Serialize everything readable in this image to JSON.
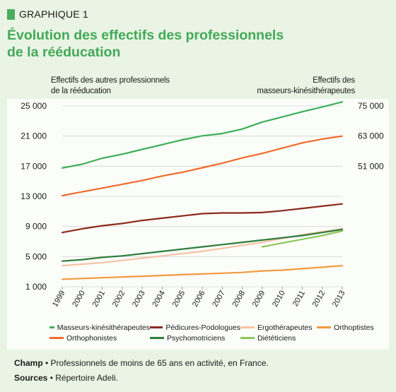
{
  "header": {
    "tag": "GRAPHIQUE 1",
    "title_line1": "Évolution des effectifs des professionnels",
    "title_line2": "de la rééducation"
  },
  "axes": {
    "left_title_line1": "Effectifs des autres professionnels",
    "left_title_line2": "de la rééducation",
    "right_title_line1": "Effectifs des",
    "right_title_line2": "masseurs-kinésithérapeutes"
  },
  "chart_data": {
    "type": "line",
    "x": [
      "1999",
      "2000",
      "2001",
      "2002",
      "2003",
      "2004",
      "2005",
      "2006",
      "2007",
      "2008",
      "2009",
      "2010",
      "2011",
      "2012",
      "2013"
    ],
    "y_left": {
      "ticks": [
        "25 000",
        "21 000",
        "17 000",
        "13 000",
        "9 000",
        "5 000",
        "1 000"
      ],
      "range": [
        1000,
        25000
      ]
    },
    "y_right": {
      "ticks": [
        "75 000",
        "63 000",
        "51 000"
      ],
      "range": [
        3000,
        75000
      ]
    },
    "grid": true,
    "legend_position": "bottom",
    "series": [
      {
        "name": "Masseurs-kinésithérapeutes",
        "axis": "right",
        "color": "#3fae5a",
        "values": [
          50300,
          51800,
          54200,
          55800,
          57700,
          59600,
          61500,
          63100,
          64000,
          65800,
          68600,
          70600,
          72700,
          74600,
          76600
        ]
      },
      {
        "name": "Pédicures-Podologues",
        "axis": "left",
        "color": "#8b2a1e",
        "values": [
          8200,
          8700,
          9100,
          9400,
          9800,
          10100,
          10400,
          10700,
          10800,
          10800,
          10850,
          11100,
          11400,
          11700,
          12000
        ]
      },
      {
        "name": "Ergothérapeutes",
        "axis": "left",
        "color": "#f6c3a5",
        "values": [
          3800,
          4000,
          4200,
          4500,
          4800,
          5100,
          5400,
          5700,
          6100,
          6500,
          6900,
          7400,
          7900,
          8300,
          8700
        ]
      },
      {
        "name": "Orthoptistes",
        "axis": "left",
        "color": "#f29a3d",
        "values": [
          2000,
          2100,
          2200,
          2300,
          2400,
          2500,
          2600,
          2700,
          2800,
          2900,
          3100,
          3200,
          3400,
          3600,
          3800
        ]
      },
      {
        "name": "Orthophonistes",
        "axis": "left",
        "color": "#ef6b2c",
        "values": [
          13100,
          13600,
          14100,
          14600,
          15100,
          15700,
          16200,
          16800,
          17400,
          18100,
          18700,
          19400,
          20100,
          20600,
          21000
        ]
      },
      {
        "name": "Psychomotriciens",
        "axis": "left",
        "color": "#2e7d3c",
        "values": [
          4400,
          4600,
          4900,
          5100,
          5400,
          5700,
          6000,
          6300,
          6600,
          6900,
          7200,
          7500,
          7800,
          8200,
          8600
        ]
      },
      {
        "name": "Diététiciens",
        "axis": "left",
        "color": "#8cc85a",
        "values": [
          null,
          null,
          null,
          null,
          null,
          null,
          null,
          null,
          null,
          null,
          6300,
          6800,
          7300,
          7800,
          8400
        ]
      }
    ]
  },
  "notes": {
    "champ_label": "Champ",
    "champ_text": " • Professionnels de moins de 65 ans en activité, en France.",
    "sources_label": "Sources",
    "sources_text": " • Répertoire Adeli."
  }
}
